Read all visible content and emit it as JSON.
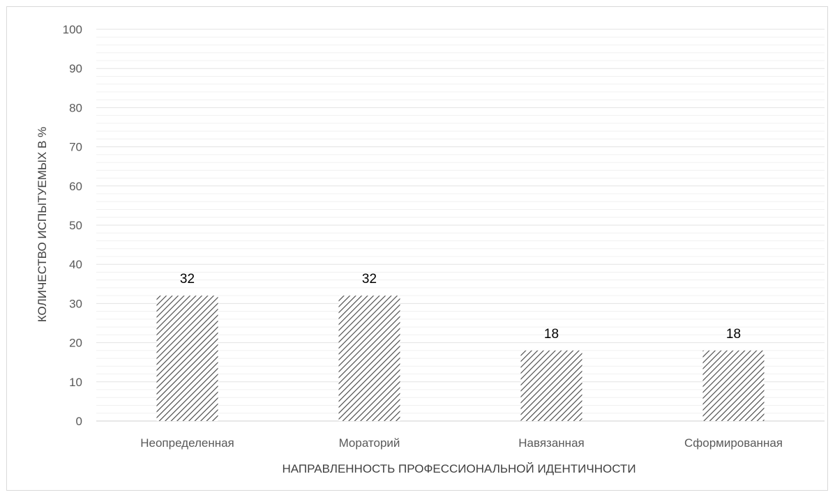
{
  "chart_data": {
    "type": "bar",
    "categories": [
      "Неопределенная",
      "Мораторий",
      "Навязанная",
      "Сформированная"
    ],
    "values": [
      32,
      32,
      18,
      18
    ],
    "title": "",
    "xlabel": "НАПРАВЛЕННОСТЬ ПРОФЕССИОНАЛЬНОЙ ИДЕНТИЧНОСТИ",
    "ylabel": "КОЛИЧЕСТВО ИСПЫТУЕМЫХ В %",
    "ylim": [
      0,
      100
    ],
    "yticks": [
      0,
      10,
      20,
      30,
      40,
      50,
      60,
      70,
      80,
      90,
      100
    ],
    "grid": true,
    "minor_grid": true,
    "legend": "none",
    "bar_fill": "diagonal-hatch",
    "colors": {
      "hatch": "#404040",
      "grid": "#e3e3e3",
      "minor_grid": "#f0f0f0"
    }
  }
}
